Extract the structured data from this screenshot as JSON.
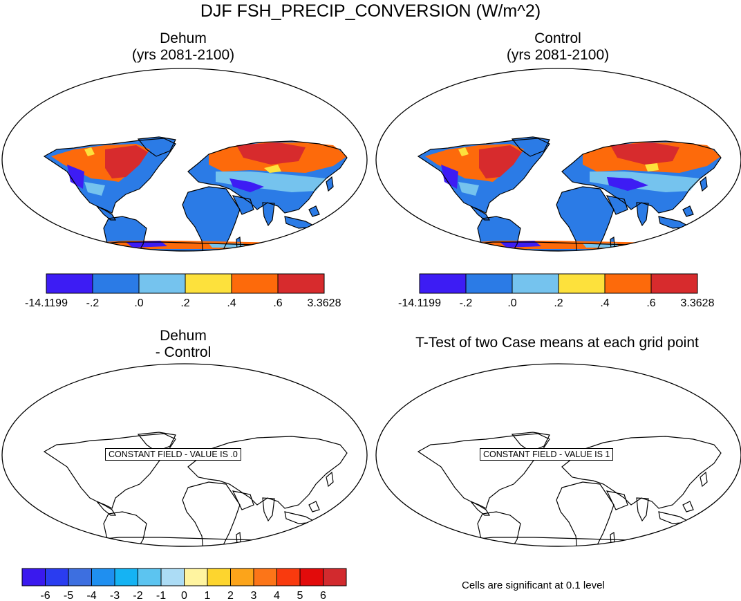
{
  "title": "DJF FSH_PRECIP_CONVERSION (W/m^2)",
  "panels": {
    "top_left": {
      "title_line1": "Dehum",
      "title_line2": "(yrs 2081-2100)"
    },
    "top_right": {
      "title_line1": "Control",
      "title_line2": "(yrs 2081-2100)"
    },
    "bottom_left": {
      "title_line1": "Dehum",
      "title_line2": " - Control",
      "constant_field_label": "CONSTANT FIELD - VALUE IS .0"
    },
    "bottom_right": {
      "title": "T-Test of two Case means at each grid point",
      "constant_field_label": "CONSTANT FIELD - VALUE IS 1",
      "footnote": "Cells are significant at 0.1 level"
    }
  },
  "colorbar_top": {
    "labels": [
      "-14.1199",
      "-.2",
      ".0",
      ".2",
      ".4",
      ".6",
      "3.3628"
    ],
    "colors": [
      "#3d1cf4",
      "#2b7be6",
      "#75c3ee",
      "#fde13c",
      "#fd6a0b",
      "#d72b2d"
    ]
  },
  "colorbar_diff": {
    "labels": [
      "-6",
      "-5",
      "-4",
      "-3",
      "-2",
      "-1",
      "0",
      "1",
      "2",
      "3",
      "4",
      "5",
      "6"
    ],
    "colors": [
      "#3a19ee",
      "#2a3cf0",
      "#3d6fe0",
      "#1f8ff0",
      "#15b3f3",
      "#5cc4f0",
      "#acdcf5",
      "#fff4a0",
      "#fdd52e",
      "#fca41a",
      "#fc7518",
      "#f93a0e",
      "#e20b0b",
      "#d22a2e"
    ]
  },
  "map_colors": {
    "land_base": "#2b7be6",
    "north_band_1": "#d72b2d",
    "north_band_2": "#fd6a0b",
    "north_band_3": "#75c3ee",
    "north_band_4": "#3d1cf4",
    "north_band_5": "#fde13c"
  }
}
